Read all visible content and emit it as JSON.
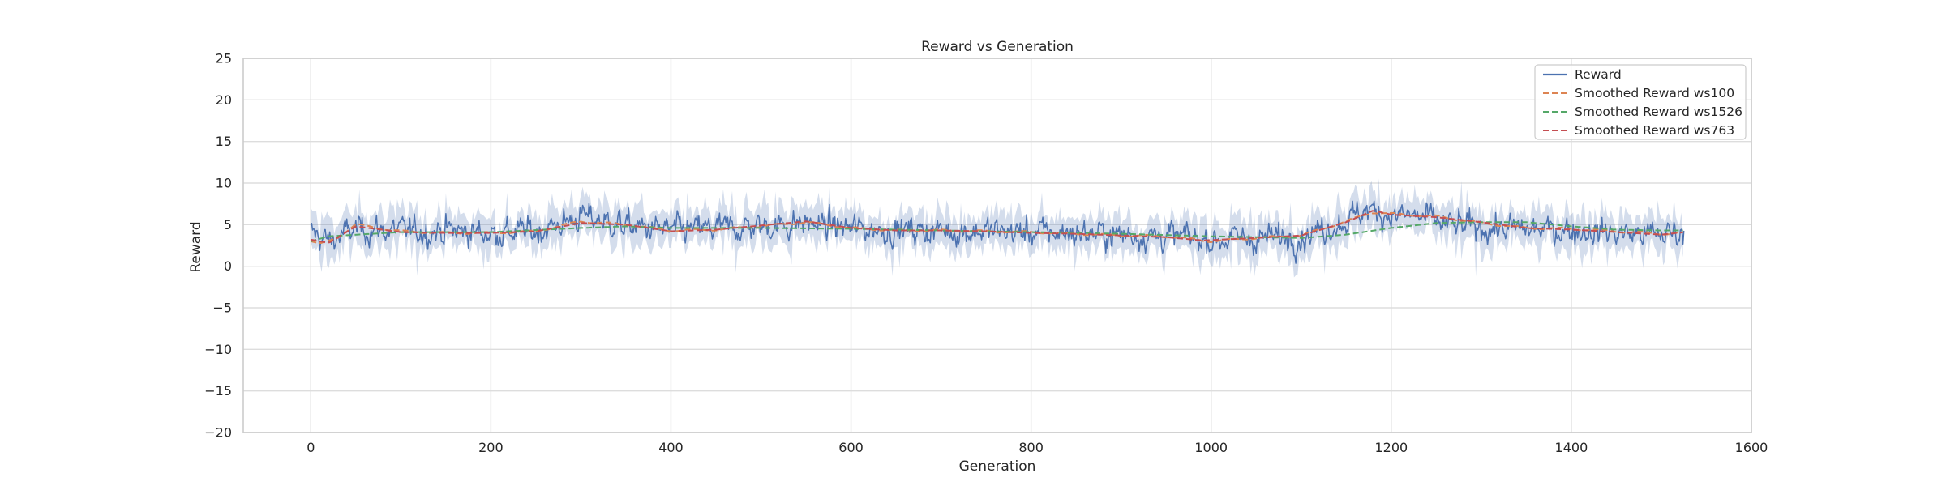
{
  "chart_data": {
    "type": "line",
    "title": "Reward vs Generation",
    "xlabel": "Generation",
    "ylabel": "Reward",
    "xlim": [
      -75,
      1600
    ],
    "ylim": [
      -20,
      25
    ],
    "xticks": [
      0,
      200,
      400,
      600,
      800,
      1000,
      1200,
      1400,
      1600
    ],
    "yticks": [
      -20,
      -15,
      -10,
      -5,
      0,
      5,
      10,
      15,
      20,
      25
    ],
    "xtick_labels": [
      "0",
      "200",
      "400",
      "600",
      "800",
      "1000",
      "1200",
      "1400",
      "1600"
    ],
    "ytick_labels": [
      "−20",
      "−15",
      "−10",
      "−5",
      "0",
      "5",
      "10",
      "15",
      "20",
      "25"
    ],
    "grid": true,
    "legend_position": "top-right",
    "n_generations": 1526,
    "series": [
      {
        "name": "Reward",
        "style": "solid",
        "color": "#4c72b0",
        "band_color": "#4c72b0",
        "profile_x": [
          0,
          20,
          50,
          100,
          150,
          200,
          250,
          280,
          300,
          320,
          350,
          400,
          450,
          500,
          550,
          600,
          650,
          700,
          750,
          800,
          850,
          900,
          950,
          1000,
          1050,
          1100,
          1150,
          1170,
          1200,
          1230,
          1260,
          1300,
          1350,
          1400,
          1450,
          1500,
          1526
        ],
        "profile_y": [
          4.0,
          3.0,
          4.5,
          4.2,
          4.3,
          4.0,
          4.2,
          5.2,
          6.0,
          5.6,
          4.8,
          4.3,
          4.5,
          4.8,
          5.2,
          4.6,
          4.3,
          4.3,
          4.2,
          4.1,
          4.0,
          3.8,
          3.6,
          3.2,
          3.4,
          3.6,
          5.5,
          6.8,
          6.2,
          6.0,
          5.0,
          4.6,
          4.4,
          4.4,
          4.0,
          3.8,
          4.2
        ],
        "amplitude": 1.6
      },
      {
        "name": "Smoothed Reward ws100",
        "style": "dashed",
        "color": "#dd8452",
        "profile_x": [
          0,
          10,
          30,
          50,
          100,
          150,
          200,
          250,
          300,
          350,
          400,
          450,
          500,
          550,
          600,
          650,
          700,
          750,
          800,
          850,
          900,
          950,
          1000,
          1050,
          1100,
          1150,
          1180,
          1200,
          1250,
          1300,
          1350,
          1400,
          1450,
          1500,
          1526
        ],
        "profile_y": [
          3.0,
          2.6,
          3.5,
          5.0,
          4.2,
          4.0,
          4.0,
          4.2,
          5.4,
          5.0,
          4.3,
          4.4,
          4.8,
          5.3,
          4.6,
          4.3,
          4.3,
          4.2,
          4.1,
          3.9,
          3.7,
          3.6,
          3.0,
          3.4,
          3.7,
          5.4,
          6.5,
          6.3,
          6.0,
          5.2,
          4.6,
          4.5,
          4.2,
          3.9,
          4.0
        ]
      },
      {
        "name": "Smoothed Reward ws1526",
        "style": "dashed",
        "color": "#55a868",
        "profile_x": [
          0,
          20,
          100,
          200,
          300,
          350,
          400,
          500,
          600,
          700,
          800,
          900,
          1000,
          1100,
          1150,
          1200,
          1250,
          1300,
          1350,
          1400,
          1450,
          1500,
          1526
        ],
        "profile_y": [
          3.0,
          3.6,
          4.1,
          4.1,
          4.6,
          4.8,
          4.6,
          4.6,
          4.5,
          4.3,
          4.1,
          3.9,
          3.6,
          3.4,
          3.8,
          4.6,
          5.2,
          5.3,
          5.3,
          4.8,
          4.4,
          4.3,
          4.3
        ]
      },
      {
        "name": "Smoothed Reward ws763",
        "style": "dashed",
        "color": "#c44e52",
        "profile_x": [
          0,
          20,
          50,
          100,
          150,
          200,
          250,
          300,
          350,
          400,
          450,
          500,
          550,
          600,
          650,
          700,
          750,
          800,
          850,
          900,
          950,
          990,
          1050,
          1100,
          1150,
          1180,
          1200,
          1250,
          1300,
          1350,
          1400,
          1450,
          1500,
          1526
        ],
        "profile_y": [
          3.2,
          2.8,
          4.8,
          4.1,
          4.0,
          4.0,
          4.2,
          5.2,
          5.0,
          4.2,
          4.4,
          4.9,
          5.4,
          4.6,
          4.3,
          4.3,
          4.2,
          4.0,
          3.9,
          3.7,
          3.5,
          3.1,
          3.4,
          3.7,
          5.3,
          6.7,
          6.2,
          5.9,
          5.3,
          4.6,
          4.4,
          4.1,
          3.8,
          4.1
        ]
      }
    ]
  }
}
